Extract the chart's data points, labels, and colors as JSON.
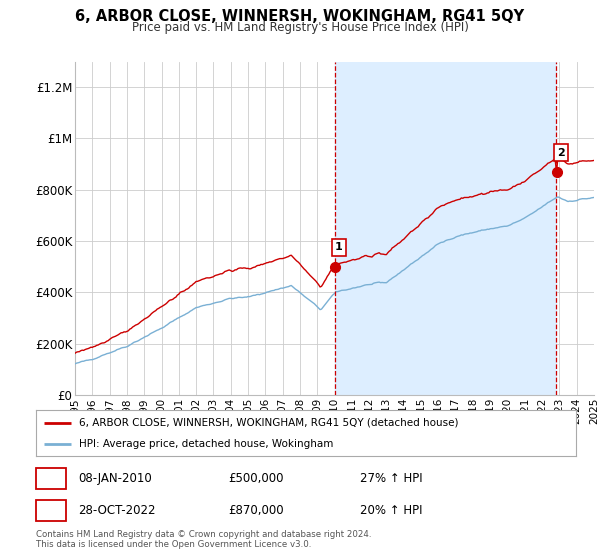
{
  "title": "6, ARBOR CLOSE, WINNERSH, WOKINGHAM, RG41 5QY",
  "subtitle": "Price paid vs. HM Land Registry's House Price Index (HPI)",
  "ylim": [
    0,
    1300000
  ],
  "yticks": [
    0,
    200000,
    400000,
    600000,
    800000,
    1000000,
    1200000
  ],
  "ytick_labels": [
    "£0",
    "£200K",
    "£400K",
    "£600K",
    "£800K",
    "£1M",
    "£1.2M"
  ],
  "red_label": "6, ARBOR CLOSE, WINNERSH, WOKINGHAM, RG41 5QY (detached house)",
  "blue_label": "HPI: Average price, detached house, Wokingham",
  "sale1_date": "08-JAN-2010",
  "sale1_price": "£500,000",
  "sale1_pct": "27% ↑ HPI",
  "sale2_date": "28-OCT-2022",
  "sale2_price": "£870,000",
  "sale2_pct": "20% ↑ HPI",
  "footnote": "Contains HM Land Registry data © Crown copyright and database right 2024.\nThis data is licensed under the Open Government Licence v3.0.",
  "vline1_x": 2010.02,
  "vline2_x": 2022.83,
  "red_color": "#cc0000",
  "blue_color": "#7ab0d4",
  "blue_fill": "#ddeeff",
  "vline_color": "#cc0000",
  "grid_color": "#cccccc",
  "background_color": "#ffffff",
  "xlim": [
    1995,
    2025
  ],
  "xtick_years": [
    1995,
    1996,
    1997,
    1998,
    1999,
    2000,
    2001,
    2002,
    2003,
    2004,
    2005,
    2006,
    2007,
    2008,
    2009,
    2010,
    2011,
    2012,
    2013,
    2014,
    2015,
    2016,
    2017,
    2018,
    2019,
    2020,
    2021,
    2022,
    2023,
    2024,
    2025
  ]
}
